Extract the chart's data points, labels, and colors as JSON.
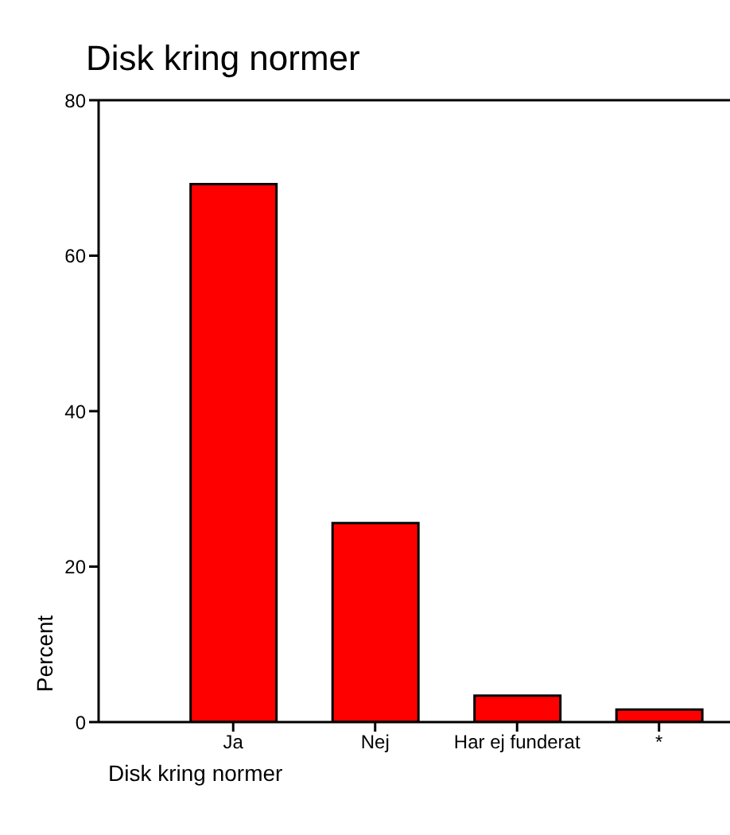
{
  "chart_data": {
    "type": "bar",
    "title": "Disk kring normer",
    "xlabel": "Disk kring normer",
    "ylabel": "Percent",
    "categories": [
      "Ja",
      "Nej",
      "Har ej funderat",
      "*"
    ],
    "values": [
      69.2,
      25.6,
      3.4,
      1.6
    ],
    "color": "#ff0000",
    "ylim": [
      0,
      80
    ],
    "yticks": [
      0,
      20,
      40,
      60,
      80
    ],
    "grid": false,
    "legend": false
  }
}
